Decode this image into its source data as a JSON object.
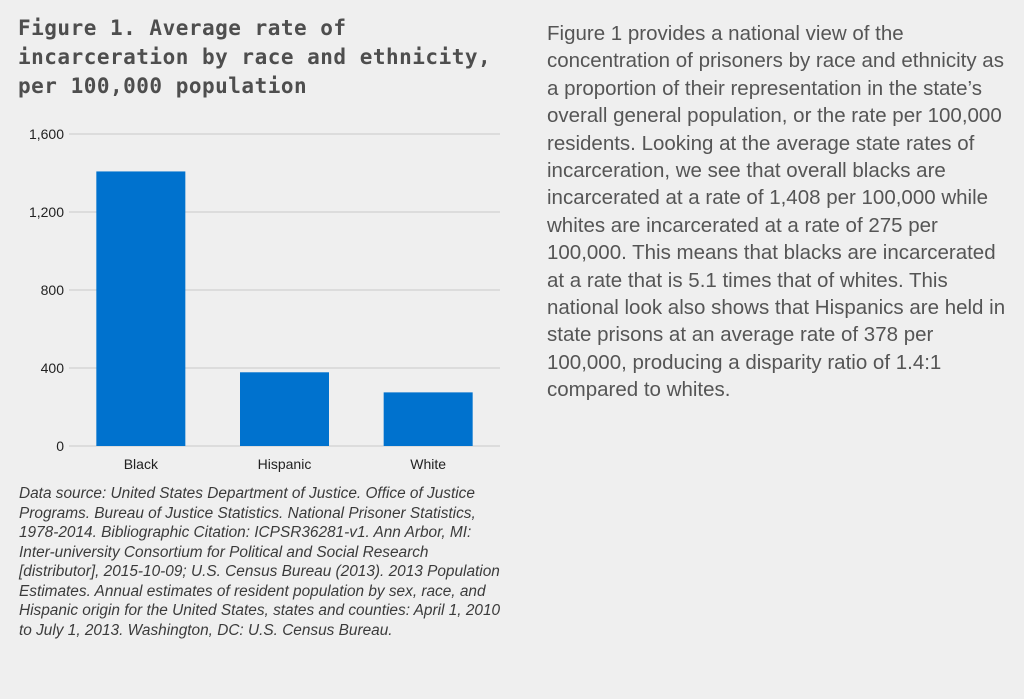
{
  "figure_title": "Figure 1. Average rate of incarceration by race and ethnicity, per 100,000 population",
  "body_text": "Figure 1 provides a national view of the concentration of prisoners by race and ethnicity as a proportion of their representation in the state’s overall general population, or the rate per 100,000 residents. Looking at the average state rates of incarceration, we see that overall blacks are incarcerated at a rate of 1,408 per 100,000 while whites are incarcerated at a rate of 275 per 100,000. This means that blacks are incarcerated at a rate that is 5.1 times that of whites. This national look also shows that Hispanics are held in state prisons at an average rate of 378 per 100,000, producing a disparity ratio of 1.4:1 compared to whites.",
  "source_note": "Data source: United States Department of Justice. Office of Justice Programs. Bureau of Justice Statistics. National Prisoner Statistics, 1978-2014. Bibliographic Citation: ICPSR36281-v1. Ann Arbor, MI: Inter-university Consortium for Political and Social Research [distributor], 2015-10-09; U.S. Census Bureau (2013). 2013 Population Estimates. Annual estimates of resident population by sex, race, and Hispanic origin for the United States, states and counties: April 1, 2010 to July 1, 2013. Washington, DC: U.S. Census Bureau.",
  "colors": {
    "bar": "#0072ce",
    "gridline": "#c8c8c8",
    "background": "#efefef"
  },
  "chart_data": {
    "type": "bar",
    "title": "Figure 1. Average rate of incarceration by race and ethnicity, per 100,000 population",
    "xlabel": "",
    "ylabel": "",
    "categories": [
      "Black",
      "Hispanic",
      "White"
    ],
    "values": [
      1408,
      378,
      275
    ],
    "ylim": [
      0,
      1600
    ],
    "yticks": [
      0,
      400,
      800,
      1200,
      1600
    ],
    "ytick_labels": [
      "0",
      "400",
      "800",
      "1,200",
      "1,600"
    ],
    "grid": true,
    "legend": "none"
  }
}
